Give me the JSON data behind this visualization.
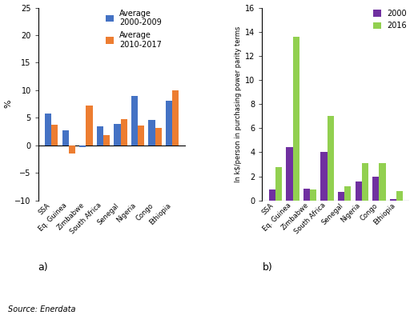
{
  "chart_a": {
    "categories": [
      "SSA",
      "Eq. Guinea",
      "Zimbabwe",
      "South Africa",
      "Senegal",
      "Nigeria",
      "Congo",
      "Ethiopia"
    ],
    "series1": [
      5.8,
      2.8,
      -0.3,
      3.4,
      3.9,
      9.0,
      4.6,
      8.1
    ],
    "series2": [
      3.8,
      -1.5,
      7.2,
      1.8,
      4.7,
      3.6,
      3.2,
      10.0
    ],
    "color1": "#4472C4",
    "color2": "#ED7D31",
    "legend1": "Average\n2000-2009",
    "legend2": "Average\n2010-2017",
    "ylabel": "%",
    "ylim": [
      -10,
      25
    ],
    "yticks": [
      -10,
      -5,
      0,
      5,
      10,
      15,
      20,
      25
    ],
    "label": "a)"
  },
  "chart_b": {
    "categories": [
      "SSA",
      "Eq. Guinea",
      "Zimbabwe",
      "South Africa",
      "Senegal",
      "Nigeria",
      "Congo",
      "Ethiopia"
    ],
    "series1": [
      0.9,
      4.4,
      1.0,
      4.0,
      0.7,
      1.6,
      2.0,
      0.1
    ],
    "series2": [
      2.8,
      13.6,
      0.9,
      7.0,
      1.2,
      3.1,
      3.1,
      0.8
    ],
    "color1": "#7030A0",
    "color2": "#92D050",
    "legend1": "2000",
    "legend2": "2016",
    "ylabel": "In k$/person in purchasing power parity terms",
    "ylim": [
      0,
      16
    ],
    "yticks": [
      0,
      2,
      4,
      6,
      8,
      10,
      12,
      14,
      16
    ],
    "label": "b)"
  },
  "source": "Source: Enerdata",
  "background_color": "#FFFFFF"
}
